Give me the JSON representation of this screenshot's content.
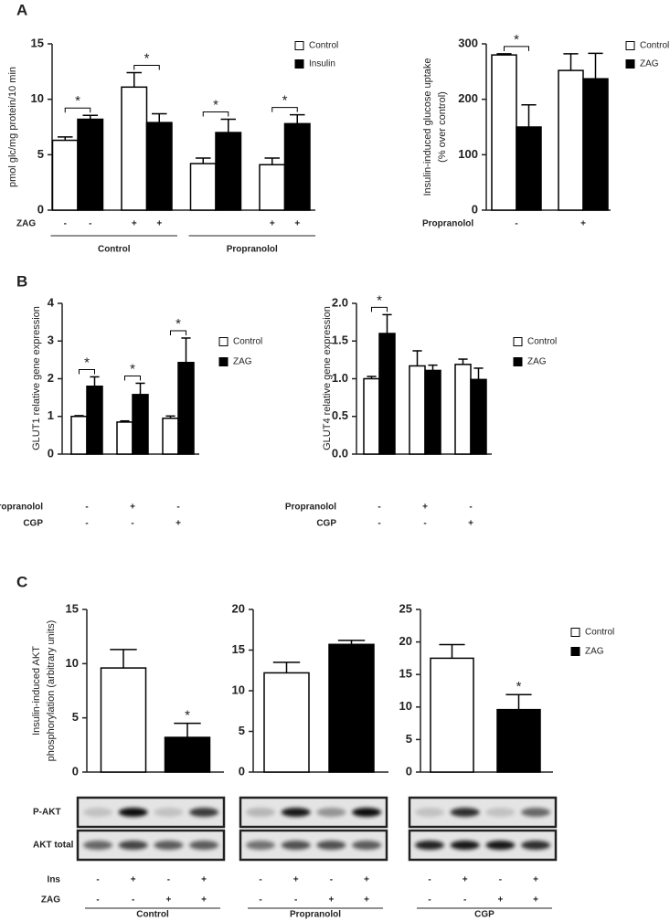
{
  "panels": [
    "A",
    "B",
    "C"
  ],
  "chart_data": [
    {
      "type": "bar",
      "ylabel": [
        "pmol glc/mg protein/10 min"
      ],
      "ylim": [
        0,
        15
      ],
      "yticks": [
        0,
        5,
        10,
        15
      ],
      "series": [
        {
          "name": "Control",
          "color": "#ffffff",
          "values": [
            6.3,
            11.1,
            4.2,
            4.1
          ],
          "errors": [
            0.3,
            1.3,
            0.5,
            0.6
          ]
        },
        {
          "name": "Insulin",
          "color": "#000000",
          "values": [
            8.2,
            7.9,
            7.0,
            7.8
          ],
          "errors": [
            0.35,
            0.8,
            1.2,
            0.8
          ]
        }
      ],
      "significance": [
        "*",
        "*",
        "*",
        "*"
      ],
      "condition_rows": [
        {
          "name": "ZAG",
          "values": [
            "-",
            "-",
            "+",
            "+",
            null,
            null,
            "+",
            "+"
          ]
        }
      ],
      "groups": [
        "Control",
        "Propranolol"
      ]
    },
    {
      "type": "bar",
      "ylabel": [
        "Insulin-induced glucose uptake",
        "(% over control)"
      ],
      "ylim": [
        0,
        300
      ],
      "yticks": [
        0,
        100,
        200,
        300
      ],
      "series": [
        {
          "name": "Control",
          "color": "#ffffff",
          "values": [
            280,
            252
          ],
          "errors": [
            2,
            30
          ]
        },
        {
          "name": "ZAG",
          "color": "#000000",
          "values": [
            150,
            237
          ],
          "errors": [
            40,
            46
          ]
        }
      ],
      "significance": [
        "*",
        null
      ],
      "condition_rows": [
        {
          "name": "Propranolol",
          "values": [
            "-",
            "+"
          ]
        }
      ]
    },
    {
      "type": "bar",
      "ylabel": [
        "GLUT1 relative  gene expression"
      ],
      "ylim": [
        0,
        4
      ],
      "yticks": [
        0,
        1,
        2,
        3,
        4
      ],
      "series": [
        {
          "name": "Control",
          "color": "#ffffff",
          "values": [
            1.0,
            0.85,
            0.95
          ],
          "errors": [
            0.02,
            0.03,
            0.06
          ]
        },
        {
          "name": "ZAG",
          "color": "#000000",
          "values": [
            1.8,
            1.58,
            2.43
          ],
          "errors": [
            0.25,
            0.3,
            0.65
          ]
        }
      ],
      "significance": [
        "*",
        "*",
        "*"
      ],
      "condition_rows": [
        {
          "name": "Propranolol",
          "values": [
            "-",
            "+",
            "-"
          ]
        },
        {
          "name": "CGP",
          "values": [
            "-",
            "-",
            "+"
          ]
        }
      ]
    },
    {
      "type": "bar",
      "ylabel": [
        "GLUT4 relative  gene expression"
      ],
      "ylim": [
        0,
        2
      ],
      "yticks": [
        {
          "value": 0,
          "label": "0.0"
        },
        {
          "value": 0.5,
          "label": "0.5"
        },
        {
          "value": 1,
          "label": "1.0"
        },
        {
          "value": 1.5,
          "label": "1.5"
        },
        {
          "value": 2,
          "label": "2.0"
        }
      ],
      "series": [
        {
          "name": "Control",
          "color": "#ffffff",
          "values": [
            1.0,
            1.17,
            1.19
          ],
          "errors": [
            0.03,
            0.2,
            0.07
          ]
        },
        {
          "name": "ZAG",
          "color": "#000000",
          "values": [
            1.6,
            1.11,
            0.99
          ],
          "errors": [
            0.25,
            0.07,
            0.15
          ]
        }
      ],
      "significance": [
        "*",
        null,
        null
      ],
      "condition_rows": [
        {
          "name": "Propranolol",
          "values": [
            "-",
            "+",
            "-"
          ]
        },
        {
          "name": "CGP",
          "values": [
            "-",
            "-",
            "+"
          ]
        }
      ]
    },
    {
      "type": "bar",
      "ylabel": [
        "Insulin-induced AKT",
        "phosphorylation (arbitrary units)"
      ],
      "ylim": [
        0,
        15
      ],
      "yticks": [
        0,
        5,
        10,
        15
      ],
      "series": [
        {
          "color": "#ffffff",
          "values": [
            9.6
          ],
          "errors": [
            1.7
          ]
        },
        {
          "color": "#000000",
          "values": [
            3.2
          ],
          "errors": [
            1.3
          ],
          "significance": [
            "*"
          ]
        }
      ]
    },
    {
      "type": "bar",
      "ylim": [
        0,
        20
      ],
      "yticks": [
        0,
        5,
        10,
        15,
        20
      ],
      "series": [
        {
          "color": "#ffffff",
          "values": [
            12.2
          ],
          "errors": [
            1.3
          ]
        },
        {
          "color": "#000000",
          "values": [
            15.7
          ],
          "errors": [
            0.5
          ]
        }
      ]
    },
    {
      "type": "bar",
      "ylim": [
        0,
        25
      ],
      "yticks": [
        0,
        5,
        10,
        15,
        20,
        25
      ],
      "series": [
        {
          "name": "Control",
          "color": "#ffffff",
          "values": [
            17.5
          ],
          "errors": [
            2.1
          ]
        },
        {
          "name": "ZAG",
          "color": "#000000",
          "values": [
            9.6
          ],
          "errors": [
            2.3
          ],
          "significance": [
            "*"
          ]
        }
      ]
    }
  ],
  "blots": {
    "rows": [
      "P-AKT",
      "AKT total"
    ],
    "conditions": [
      {
        "name": "Ins",
        "values": [
          "-",
          "+",
          "-",
          "+"
        ]
      },
      {
        "name": "ZAG",
        "values": [
          "-",
          "-",
          "+",
          "+"
        ]
      }
    ],
    "groups": [
      "Control",
      "Propranolol",
      "CGP"
    ]
  }
}
